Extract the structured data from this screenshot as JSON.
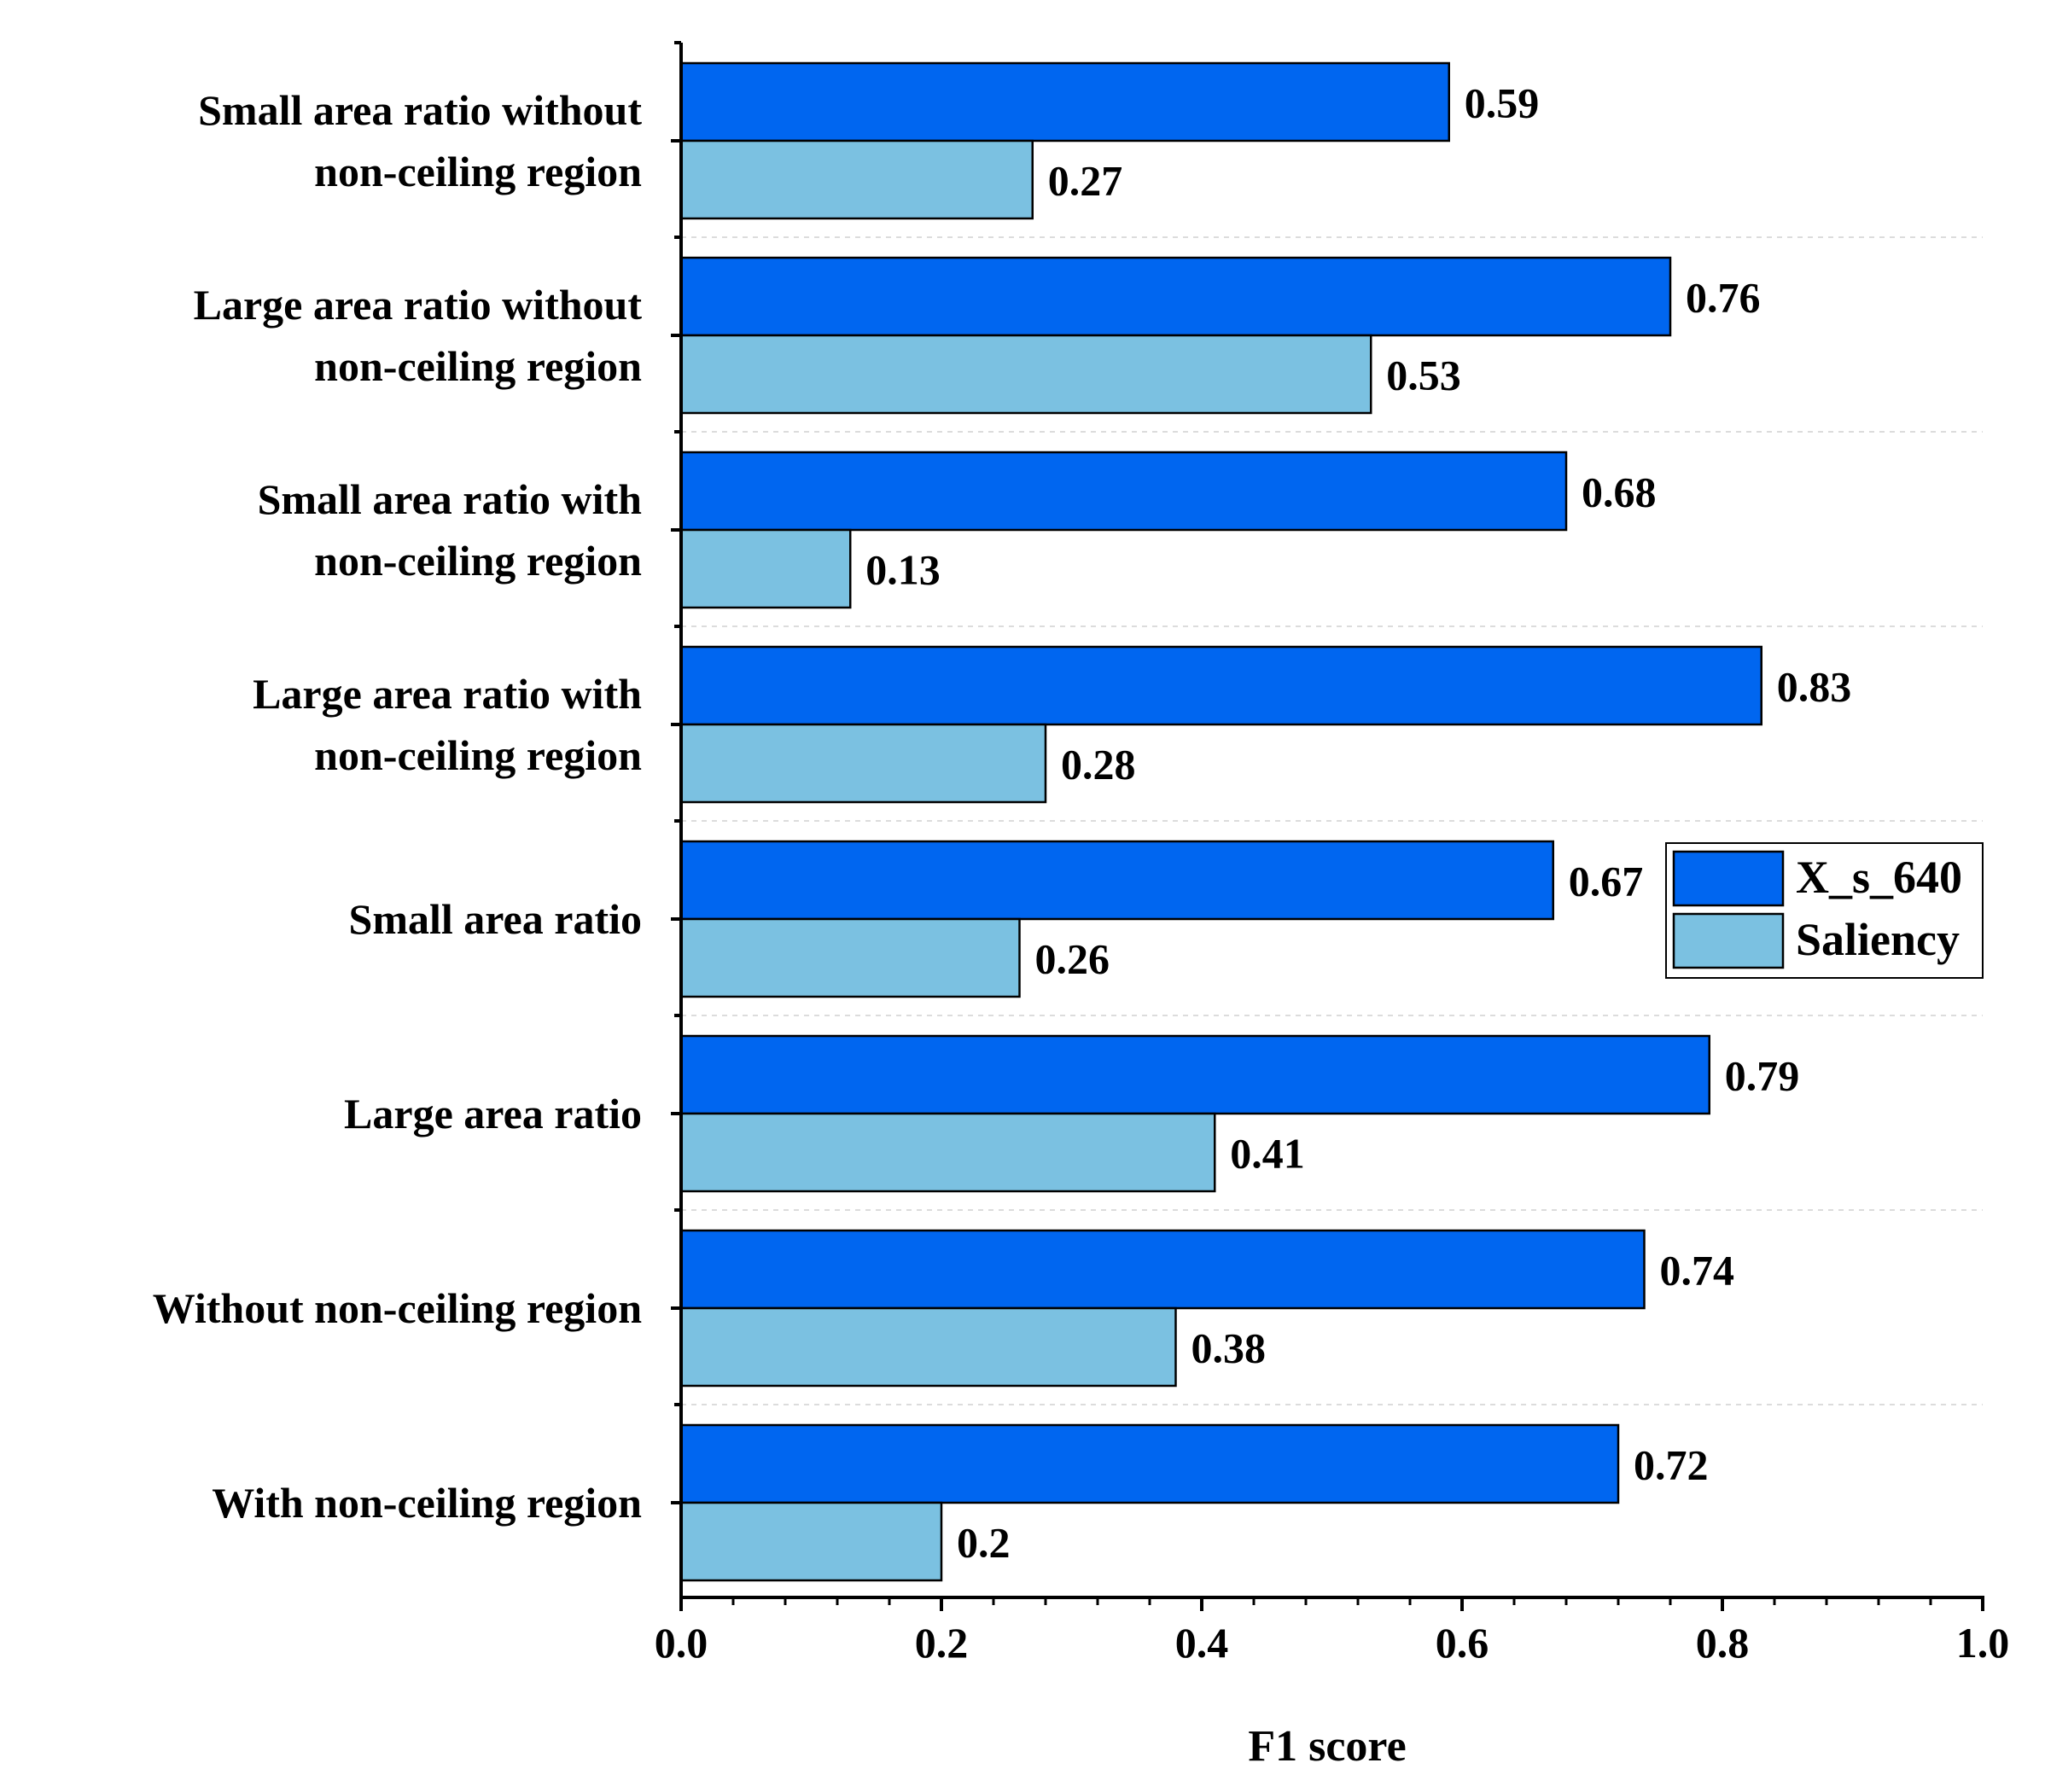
{
  "chart_data": {
    "type": "bar",
    "orientation": "horizontal",
    "categories": [
      [
        "Small area ratio without",
        "non-ceiling region"
      ],
      [
        "Large area ratio without",
        "non-ceiling region"
      ],
      [
        "Small area ratio with",
        "non-ceiling region"
      ],
      [
        "Large area ratio with",
        "non-ceiling region"
      ],
      [
        "Small area ratio"
      ],
      [
        "Large area ratio"
      ],
      [
        "Without non-ceiling region"
      ],
      [
        "With non-ceiling region"
      ]
    ],
    "series": [
      {
        "name": "X_s_640",
        "color": "#0066F0",
        "values": [
          0.59,
          0.76,
          0.68,
          0.83,
          0.67,
          0.79,
          0.74,
          0.72
        ],
        "labels": [
          "0.59",
          "0.76",
          "0.68",
          "0.83",
          "0.67",
          "0.79",
          "0.74",
          "0.72"
        ]
      },
      {
        "name": "Saliency",
        "color": "#7BC1E1",
        "values": [
          0.27,
          0.53,
          0.13,
          0.28,
          0.26,
          0.41,
          0.38,
          0.2
        ],
        "labels": [
          "0.27",
          "0.53",
          "0.13",
          "0.28",
          "0.26",
          "0.41",
          "0.38",
          "0.2"
        ]
      }
    ],
    "xlabel": "F1 score",
    "ylabel": "",
    "xlim": [
      0,
      1.0
    ],
    "xticks": [
      0.0,
      0.2,
      0.4,
      0.6,
      0.8,
      1.0
    ],
    "xtick_labels": [
      "0.0",
      "0.2",
      "0.4",
      "0.6",
      "0.8",
      "1.0"
    ],
    "minor_tick_step": 0.04,
    "grid": "horizontal dashed between categories",
    "legend_position": "right-middle"
  }
}
